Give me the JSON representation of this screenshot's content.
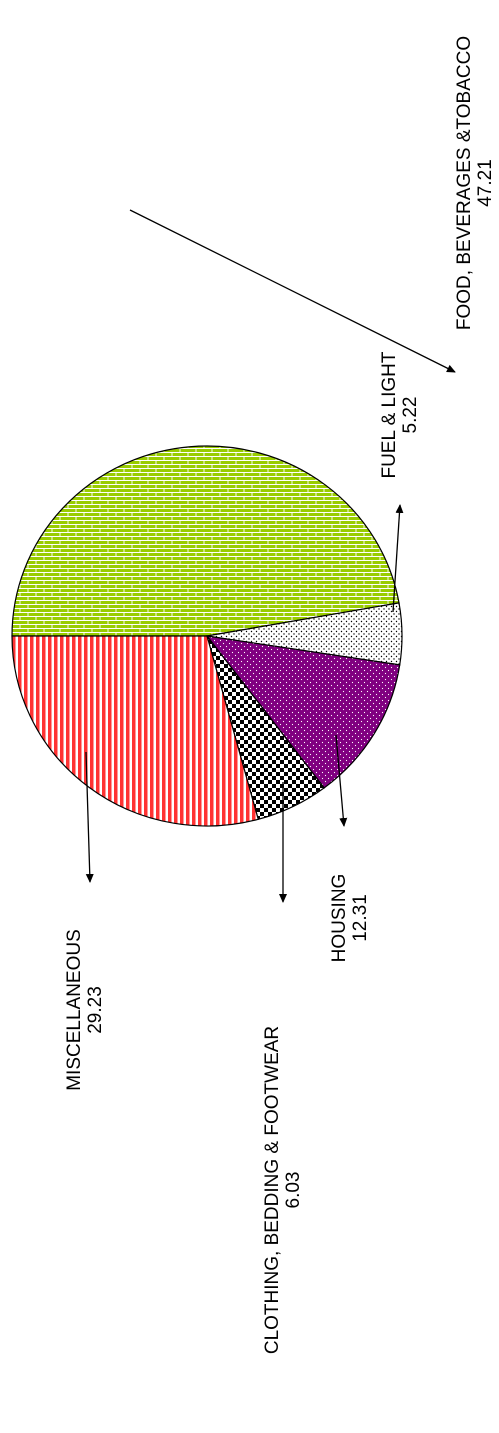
{
  "chart_data": {
    "type": "pie",
    "categories": [
      "FOOD, BEVERAGES &TOBACCO",
      "FUEL & LIGHT",
      "HOUSING",
      "CLOTHING, BEDDING & FOOTWEAR",
      "MISCELLANEOUS"
    ],
    "values": [
      47.21,
      5.22,
      12.31,
      6.03,
      29.23
    ],
    "colors": [
      "#99cc00",
      "#ffffff",
      "#800080",
      "#000000",
      "#ff3333"
    ]
  }
}
